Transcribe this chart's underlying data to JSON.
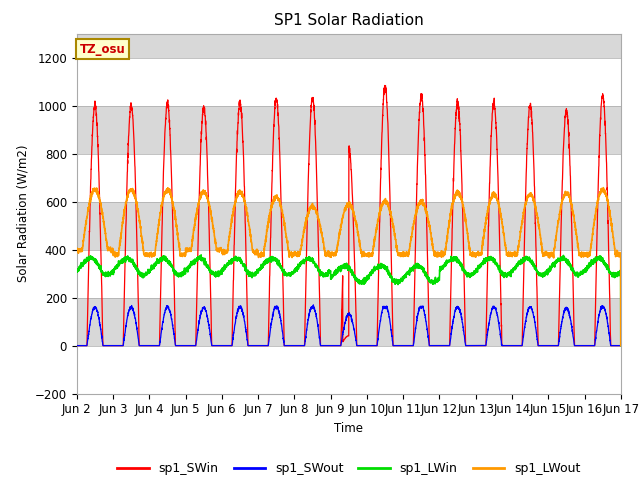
{
  "title": "SP1 Solar Radiation",
  "ylabel": "Solar Radiation (W/m2)",
  "xlabel": "Time",
  "ylim": [
    -200,
    1300
  ],
  "yticks": [
    -200,
    0,
    200,
    400,
    600,
    800,
    1000,
    1200
  ],
  "background_color": "#ffffff",
  "plot_bg_color": "#d8d8d8",
  "grid_color": "#ffffff",
  "tz_label": "TZ_osu",
  "legend_entries": [
    "sp1_SWin",
    "sp1_SWout",
    "sp1_LWin",
    "sp1_LWout"
  ],
  "line_colors": [
    "#ff0000",
    "#0000ff",
    "#00dd00",
    "#ff9900"
  ],
  "x_tick_labels": [
    "Jun 2",
    "Jun 3",
    "Jun 4",
    "Jun 5",
    "Jun 6",
    "Jun 7",
    "Jun 8",
    "Jun 9",
    "Jun 10",
    "Jun 11",
    "Jun 12",
    "Jun 13",
    "Jun 14",
    "Jun 15",
    "Jun 16",
    "Jun 17"
  ],
  "num_days": 15,
  "sw_peaks": [
    1000,
    1000,
    1010,
    990,
    1010,
    1030,
    1030,
    820,
    1080,
    1040,
    1010,
    1010,
    1000,
    980,
    1040
  ],
  "lw_peaks": [
    650,
    650,
    650,
    640,
    640,
    620,
    580,
    590,
    600,
    600,
    640,
    630,
    630,
    635,
    650
  ],
  "lw_mins": [
    400,
    380,
    380,
    400,
    390,
    380,
    380,
    380,
    380,
    380,
    380,
    380,
    380,
    380,
    380
  ]
}
